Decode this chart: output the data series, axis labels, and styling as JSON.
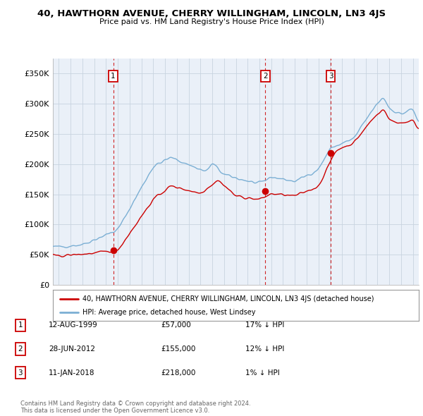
{
  "title": "40, HAWTHORN AVENUE, CHERRY WILLINGHAM, LINCOLN, LN3 4JS",
  "subtitle": "Price paid vs. HM Land Registry's House Price Index (HPI)",
  "ylabel_ticks": [
    "£0",
    "£50K",
    "£100K",
    "£150K",
    "£200K",
    "£250K",
    "£300K",
    "£350K"
  ],
  "ytick_values": [
    0,
    50000,
    100000,
    150000,
    200000,
    250000,
    300000,
    350000
  ],
  "ylim": [
    0,
    375000
  ],
  "xlim_start": 1994.5,
  "xlim_end": 2025.5,
  "sale_dates": [
    1999.614,
    2012.493,
    2018.036
  ],
  "sale_prices": [
    57000,
    155000,
    218000
  ],
  "sale_labels": [
    "1",
    "2",
    "3"
  ],
  "hpi_color": "#7BAFD4",
  "sale_color": "#cc0000",
  "dashed_line_color": "#cc0000",
  "chart_bg_color": "#EAF0F8",
  "legend_sale_label": "40, HAWTHORN AVENUE, CHERRY WILLINGHAM, LINCOLN, LN3 4JS (detached house)",
  "legend_hpi_label": "HPI: Average price, detached house, West Lindsey",
  "table_rows": [
    [
      "1",
      "12-AUG-1999",
      "£57,000",
      "17% ↓ HPI"
    ],
    [
      "2",
      "28-JUN-2012",
      "£155,000",
      "12% ↓ HPI"
    ],
    [
      "3",
      "11-JAN-2018",
      "£218,000",
      "1% ↓ HPI"
    ]
  ],
  "footnote": "Contains HM Land Registry data © Crown copyright and database right 2024.\nThis data is licensed under the Open Government Licence v3.0.",
  "background_color": "#ffffff",
  "grid_color": "#c8d4e0"
}
